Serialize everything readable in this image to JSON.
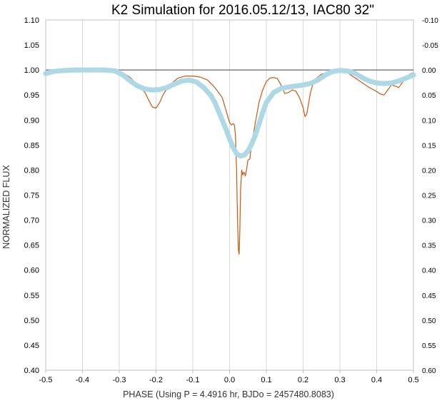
{
  "chart_data": {
    "type": "line",
    "title": "K2 Simulation for 2016.05.12/13, IAC80 32\"",
    "xlabel": "PHASE (Using P = 4.4916 hr, BJDo = 2457480.8083)",
    "ylabel": "NORMALIZED FLUX",
    "xlim": [
      -0.5,
      0.5
    ],
    "ylim": [
      0.4,
      1.1
    ],
    "y2lim": [
      -0.1,
      0.6
    ],
    "y2_inverted": true,
    "grid": "vertical",
    "legend": "none",
    "x_ticks": [
      "-0.5",
      "-0.4",
      "-0.3",
      "-0.2",
      "-0.1",
      "0.0",
      "0.1",
      "0.2",
      "0.3",
      "0.4",
      "0.5"
    ],
    "y_ticks": [
      "1.10",
      "1.05",
      "1.00",
      "0.95",
      "0.90",
      "0.85",
      "0.80",
      "0.75",
      "0.70",
      "0.65",
      "0.60",
      "0.55",
      "0.50",
      "0.45",
      "0.40"
    ],
    "y2_ticks": [
      "-0.10",
      "-0.05",
      "0.00",
      "0.05",
      "0.10",
      "0.15",
      "0.20",
      "0.25",
      "0.30",
      "0.35",
      "0.40",
      "0.45",
      "0.50",
      "0.55",
      "0.60"
    ],
    "reference_line": {
      "y": 1.0,
      "color": "#7f7f7f"
    },
    "series": [
      {
        "style": "line",
        "color": "#c55a11",
        "x": [
          -0.5,
          -0.48,
          -0.45,
          -0.4,
          -0.35,
          -0.31,
          -0.29,
          -0.27,
          -0.25,
          -0.23,
          -0.22,
          -0.21,
          -0.2,
          -0.19,
          -0.18,
          -0.16,
          -0.14,
          -0.12,
          -0.1,
          -0.08,
          -0.06,
          -0.04,
          -0.02,
          -0.01,
          0.0,
          0.005,
          0.01,
          0.013,
          0.016,
          0.019,
          0.022,
          0.024,
          0.026,
          0.028,
          0.03,
          0.033,
          0.036,
          0.038,
          0.04,
          0.043,
          0.046,
          0.05,
          0.055,
          0.06,
          0.07,
          0.08,
          0.09,
          0.1,
          0.11,
          0.12,
          0.13,
          0.14,
          0.15,
          0.16,
          0.17,
          0.18,
          0.19,
          0.2,
          0.205,
          0.21,
          0.22,
          0.23,
          0.25,
          0.28,
          0.3,
          0.32,
          0.34,
          0.36,
          0.38,
          0.4,
          0.41,
          0.42,
          0.43,
          0.44,
          0.45,
          0.46,
          0.47,
          0.48,
          0.49,
          0.5
        ],
        "y": [
          0.995,
          0.999,
          1.0,
          1.0,
          1.0,
          0.999,
          0.995,
          0.985,
          0.97,
          0.955,
          0.94,
          0.926,
          0.924,
          0.935,
          0.952,
          0.972,
          0.984,
          0.988,
          0.988,
          0.986,
          0.98,
          0.965,
          0.945,
          0.92,
          0.895,
          0.89,
          0.893,
          0.89,
          0.87,
          0.8,
          0.69,
          0.64,
          0.632,
          0.68,
          0.76,
          0.8,
          0.79,
          0.795,
          0.795,
          0.788,
          0.8,
          0.82,
          0.822,
          0.85,
          0.895,
          0.935,
          0.96,
          0.977,
          0.984,
          0.985,
          0.983,
          0.97,
          0.953,
          0.955,
          0.96,
          0.958,
          0.945,
          0.925,
          0.907,
          0.912,
          0.955,
          0.98,
          0.992,
          0.997,
          0.998,
          0.995,
          0.985,
          0.975,
          0.965,
          0.957,
          0.952,
          0.95,
          0.96,
          0.97,
          0.968,
          0.965,
          0.975,
          0.985,
          0.992,
          0.995
        ]
      },
      {
        "style": "marker",
        "color": "#add8e6",
        "x": [
          -0.5,
          -0.48,
          -0.45,
          -0.42,
          -0.38,
          -0.34,
          -0.31,
          -0.29,
          -0.27,
          -0.25,
          -0.23,
          -0.21,
          -0.19,
          -0.17,
          -0.15,
          -0.13,
          -0.11,
          -0.09,
          -0.07,
          -0.05,
          -0.04,
          -0.03,
          -0.02,
          -0.01,
          0.0,
          0.01,
          0.02,
          0.03,
          0.04,
          0.05,
          0.06,
          0.07,
          0.08,
          0.09,
          0.1,
          0.12,
          0.14,
          0.16,
          0.18,
          0.2,
          0.22,
          0.24,
          0.26,
          0.28,
          0.3,
          0.32,
          0.34,
          0.36,
          0.38,
          0.4,
          0.42,
          0.44,
          0.46,
          0.48,
          0.5
        ],
        "y": [
          0.993,
          0.997,
          0.999,
          1.0,
          1.0,
          1.0,
          0.998,
          0.99,
          0.978,
          0.968,
          0.962,
          0.96,
          0.961,
          0.965,
          0.972,
          0.978,
          0.98,
          0.976,
          0.965,
          0.948,
          0.935,
          0.918,
          0.9,
          0.882,
          0.862,
          0.845,
          0.832,
          0.828,
          0.83,
          0.838,
          0.852,
          0.87,
          0.892,
          0.915,
          0.935,
          0.955,
          0.963,
          0.966,
          0.968,
          0.97,
          0.973,
          0.98,
          0.99,
          0.997,
          0.999,
          0.998,
          0.994,
          0.985,
          0.978,
          0.974,
          0.973,
          0.974,
          0.978,
          0.984,
          0.99
        ]
      }
    ]
  }
}
